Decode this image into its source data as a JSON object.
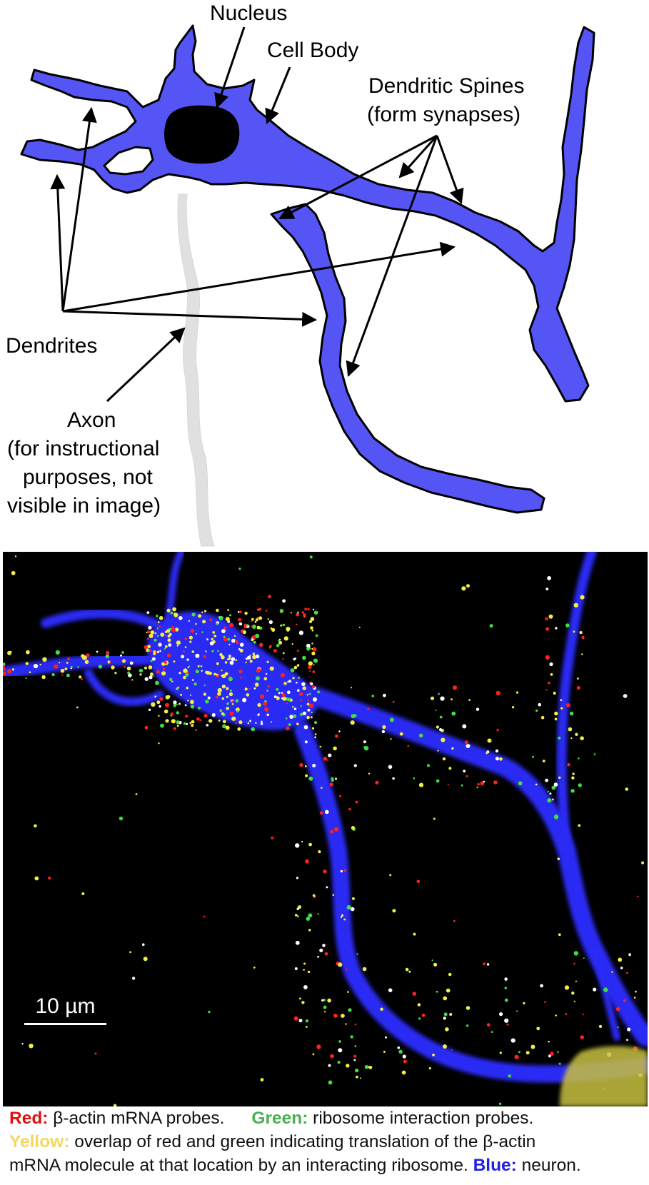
{
  "diagram": {
    "labels": {
      "nucleus": "Nucleus",
      "cell_body": "Cell Body",
      "dendritic_spines_1": "Dendritic Spines",
      "dendritic_spines_2": "(form synapses)",
      "dendrites": "Dendrites",
      "axon_1": "Axon",
      "axon_2": "(for instructional",
      "axon_3": "purposes, not",
      "axon_4": "visible in image)"
    },
    "colors": {
      "neuron": "#5555f5",
      "nucleus": "#000000",
      "axon": "#e0e0e0"
    }
  },
  "micrograph": {
    "scale_bar_label": "10 µm",
    "colors": {
      "background": "#000000",
      "neuron": "#2a2af5",
      "red_probe": "#ff2020",
      "green_probe": "#40e040",
      "yellow_overlap": "#f5f040"
    }
  },
  "caption": {
    "red_key": "Red:",
    "red_text": " β-actin mRNA probes.",
    "green_key": "Green:",
    "green_text": " ribosome interaction probes.",
    "yellow_key": "Yellow:",
    "yellow_text": " overlap of red and green indicating translation of the β-actin",
    "line3_text": "mRNA molecule at that location by an interacting ribosome. ",
    "blue_key": "Blue:",
    "blue_text": " neuron."
  }
}
